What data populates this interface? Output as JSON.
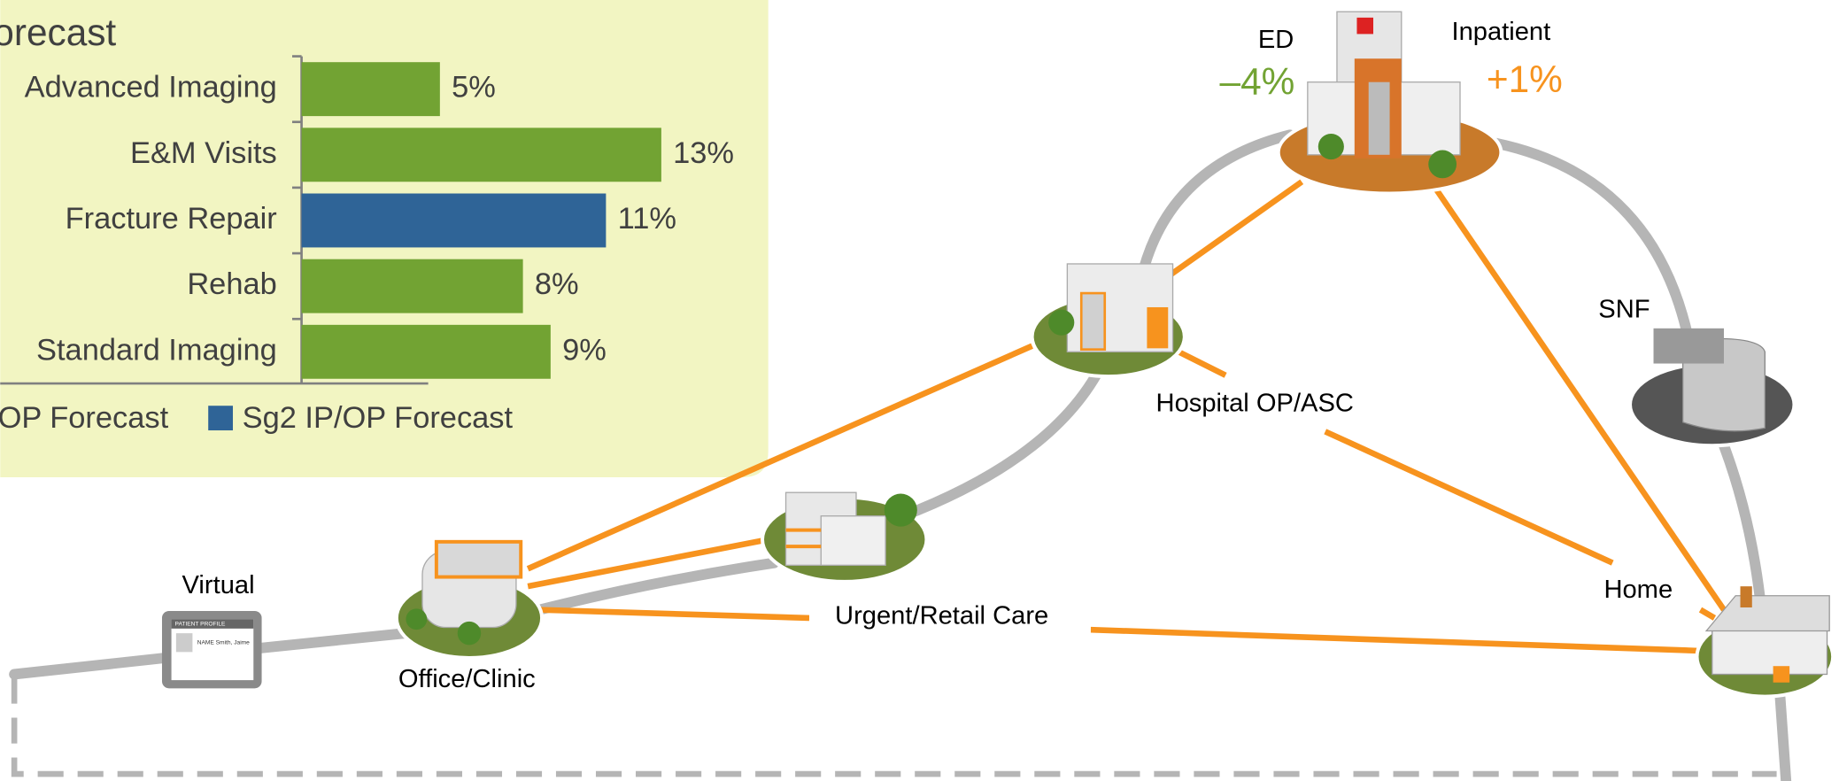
{
  "chart_data": {
    "type": "bar",
    "orientation": "horizontal",
    "title": "orecast",
    "categories": [
      "Advanced Imaging",
      "E&M Visits",
      "Fracture Repair",
      "Rehab",
      "Standard Imaging"
    ],
    "series": [
      {
        "name": "OP Forecast",
        "color": "#72a333",
        "values": [
          5,
          13,
          null,
          8,
          9
        ],
        "value_labels": [
          "5%",
          "13%",
          null,
          "8%",
          "9%"
        ]
      },
      {
        "name": "Sg2 IP/OP Forecast",
        "color": "#2f6497",
        "values": [
          null,
          null,
          11,
          null,
          null
        ],
        "value_labels": [
          null,
          null,
          "11%",
          null,
          null
        ]
      }
    ]
  },
  "nodes": {
    "ed": "ED",
    "ed_change": "–4%",
    "inpatient": "Inpatient",
    "inpatient_change": "+1%",
    "snf": "SNF",
    "hospital_op": "Hospital OP/ASC",
    "home": "Home",
    "urgent": "Urgent/Retail Care",
    "office": "Office/Clinic",
    "virtual": "Virtual"
  },
  "tablet": {
    "header": "PATIENT PROFILE",
    "name": "NAME Smith, Jaime"
  }
}
